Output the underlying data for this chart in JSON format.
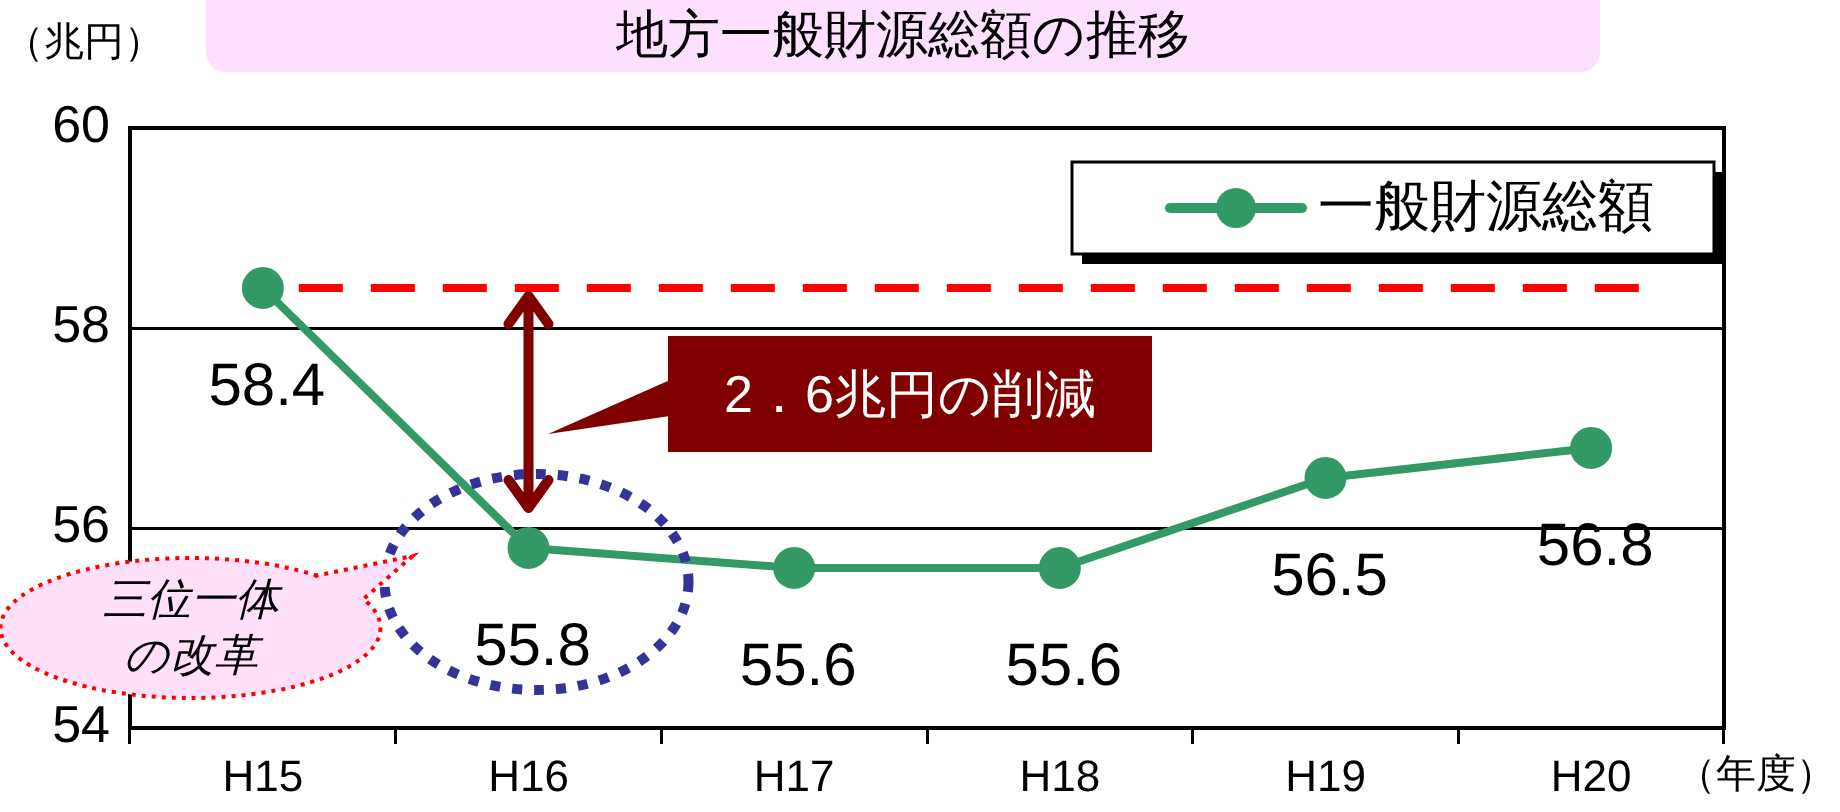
{
  "chart_data": {
    "type": "line",
    "title": "地方一般財源総額の推移",
    "ylabel": "（兆円）",
    "xlabel": "（年度）",
    "categories": [
      "H15",
      "H16",
      "H17",
      "H18",
      "H19",
      "H20"
    ],
    "series": [
      {
        "name": "一般財源総額",
        "color": "#339966",
        "values": [
          58.4,
          55.8,
          55.6,
          55.6,
          56.5,
          56.8
        ]
      }
    ],
    "ylim": [
      54,
      60
    ],
    "yticks": [
      54,
      56,
      58,
      60
    ],
    "grid": "y",
    "legend": "top right",
    "marker": "circle",
    "data_labels": true,
    "ref_lines": [
      {
        "axis": "y",
        "value": 58.4,
        "color": "#ff0000",
        "line_style": "dashed"
      }
    ],
    "annotations": [
      "2．6兆円の削減",
      "三位一体の改革"
    ]
  }
}
